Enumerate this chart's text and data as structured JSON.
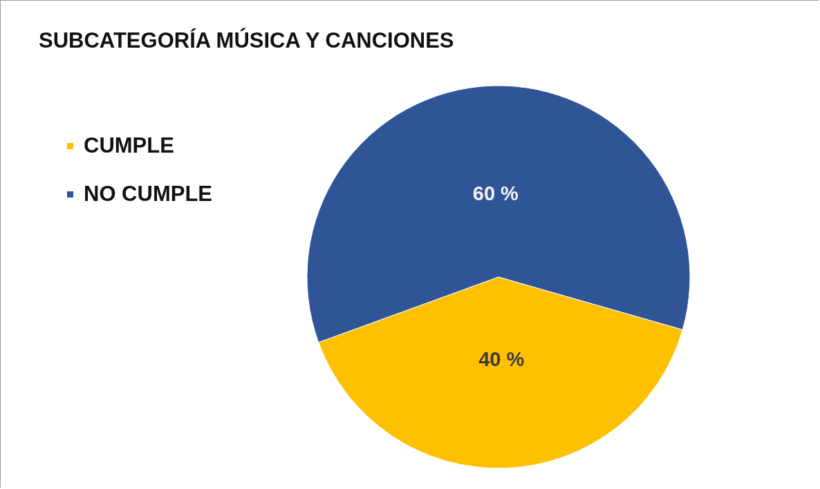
{
  "chart_data": {
    "type": "pie",
    "title": "SUBCATEGORÍA MÚSICA Y CANCIONES",
    "categories": [
      "CUMPLE",
      "NO CUMPLE"
    ],
    "values": [
      40,
      60
    ],
    "colors": [
      "#ffc000",
      "#2f5597"
    ],
    "value_labels": [
      "40 %",
      "60 %"
    ],
    "legend": "left"
  }
}
